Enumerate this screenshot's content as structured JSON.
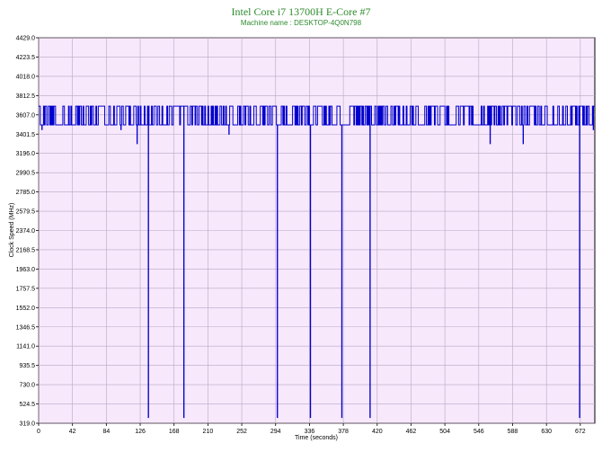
{
  "chart_data": {
    "type": "line",
    "title": "Intel Core i7 13700H E-Core #7",
    "subtitle": "Machine name : DESKTOP-4Q0N798",
    "xlabel": "Time (seconds)",
    "ylabel": "Clock Speed (MHz)",
    "xlim": [
      0,
      690
    ],
    "ylim": [
      319.0,
      4429.0
    ],
    "x_ticks": [
      "0",
      "42",
      "84",
      "126",
      "168",
      "210",
      "252",
      "294",
      "336",
      "378",
      "420",
      "462",
      "504",
      "546",
      "588",
      "630",
      "672"
    ],
    "y_ticks": [
      "319.0",
      "524.5",
      "730.0",
      "935.5",
      "1141.0",
      "1346.5",
      "1552.0",
      "1757.5",
      "1963.0",
      "2168.5",
      "2374.0",
      "2579.5",
      "2785.0",
      "2990.5",
      "3196.0",
      "3401.5",
      "3607.0",
      "3812.5",
      "4018.0",
      "4223.5",
      "4429.0"
    ],
    "grid": true,
    "series": [
      {
        "values_description_note": "",
        "baseline_high": 3700,
        "baseline_low": 3500,
        "dips": [
          {
            "x": 4,
            "y": 3450
          },
          {
            "x": 102,
            "y": 3450
          },
          {
            "x": 122,
            "y": 3300
          },
          {
            "x": 136,
            "y": 380
          },
          {
            "x": 180,
            "y": 380
          },
          {
            "x": 236,
            "y": 3400
          },
          {
            "x": 296,
            "y": 380
          },
          {
            "x": 337,
            "y": 380
          },
          {
            "x": 376,
            "y": 380
          },
          {
            "x": 411,
            "y": 380
          },
          {
            "x": 560,
            "y": 3300
          },
          {
            "x": 601,
            "y": 3300
          },
          {
            "x": 671,
            "y": 380
          },
          {
            "x": 688,
            "y": 3450
          }
        ]
      }
    ],
    "colors": {
      "line": "#0000cc",
      "plot_background": "#f8e8fc",
      "grid": "#b5a9c2",
      "title": "#2e8b2e"
    }
  }
}
